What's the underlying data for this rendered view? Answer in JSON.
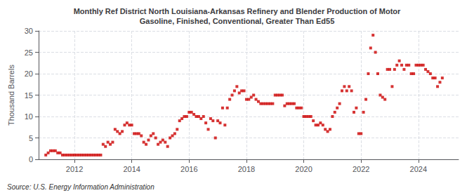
{
  "chart_data": {
    "type": "scatter",
    "title": "Monthly Ref District North Louisiana-Arkansas Refinery and Blender Production of Motor\nGasoline, Finished, Conventional, Greater Than Ed55",
    "ylabel": "Thousand Barrels",
    "annotations": [
      "Source: U.S. Energy Information Administration"
    ],
    "color": "#cc0000",
    "marker": "square",
    "grid": true,
    "xlim": [
      2010.75,
      2025.4
    ],
    "xticks": [
      2012,
      2014,
      2016,
      2018,
      2020,
      2022,
      2024
    ],
    "ylim": [
      0,
      30
    ],
    "yticks": [
      0,
      5,
      10,
      15,
      20,
      25,
      30
    ],
    "x": [
      2011.0,
      2011.083,
      2011.167,
      2011.25,
      2011.333,
      2011.417,
      2011.5,
      2011.583,
      2011.667,
      2011.75,
      2011.833,
      2011.917,
      2012.0,
      2012.083,
      2012.167,
      2012.25,
      2012.333,
      2012.417,
      2012.5,
      2012.583,
      2012.667,
      2012.75,
      2012.833,
      2012.917,
      2013.0,
      2013.083,
      2013.167,
      2013.25,
      2013.333,
      2013.417,
      2013.5,
      2013.583,
      2013.667,
      2013.75,
      2013.833,
      2013.917,
      2014.0,
      2014.083,
      2014.167,
      2014.25,
      2014.333,
      2014.417,
      2014.5,
      2014.583,
      2014.667,
      2014.75,
      2014.833,
      2014.917,
      2015.0,
      2015.083,
      2015.167,
      2015.25,
      2015.333,
      2015.417,
      2015.5,
      2015.583,
      2015.667,
      2015.75,
      2015.833,
      2015.917,
      2016.0,
      2016.083,
      2016.167,
      2016.25,
      2016.333,
      2016.417,
      2016.5,
      2016.583,
      2016.667,
      2016.75,
      2016.833,
      2016.917,
      2017.0,
      2017.083,
      2017.167,
      2017.25,
      2017.333,
      2017.417,
      2017.5,
      2017.583,
      2017.667,
      2017.75,
      2017.833,
      2017.917,
      2018.0,
      2018.083,
      2018.167,
      2018.25,
      2018.333,
      2018.417,
      2018.5,
      2018.583,
      2018.667,
      2018.75,
      2018.833,
      2018.917,
      2019.0,
      2019.083,
      2019.167,
      2019.25,
      2019.333,
      2019.417,
      2019.5,
      2019.583,
      2019.667,
      2019.75,
      2019.833,
      2019.917,
      2020.0,
      2020.083,
      2020.167,
      2020.25,
      2020.333,
      2020.417,
      2020.5,
      2020.583,
      2020.667,
      2020.75,
      2020.833,
      2020.917,
      2021.0,
      2021.083,
      2021.167,
      2021.25,
      2021.333,
      2021.417,
      2021.5,
      2021.583,
      2021.667,
      2021.75,
      2021.833,
      2021.917,
      2022.0,
      2022.083,
      2022.167,
      2022.25,
      2022.333,
      2022.417,
      2022.5,
      2022.583,
      2022.667,
      2022.75,
      2022.833,
      2022.917,
      2023.0,
      2023.083,
      2023.167,
      2023.25,
      2023.333,
      2023.417,
      2023.5,
      2023.583,
      2023.667,
      2023.75,
      2023.833,
      2023.917,
      2024.0,
      2024.083,
      2024.167,
      2024.25,
      2024.333,
      2024.417,
      2024.5,
      2024.583,
      2024.667,
      2024.75,
      2024.833
    ],
    "values": [
      1.0,
      1.5,
      2.0,
      2.0,
      2.0,
      1.5,
      1.5,
      1.0,
      1.0,
      1.0,
      1.0,
      1.0,
      1.0,
      1.0,
      1.0,
      1.0,
      1.0,
      1.0,
      1.0,
      1.0,
      1.0,
      1.0,
      1.0,
      1.0,
      3.5,
      3.0,
      4.0,
      3.5,
      4.0,
      7.0,
      6.5,
      6.0,
      6.5,
      8.0,
      8.5,
      8.0,
      8.0,
      6.0,
      6.0,
      6.0,
      5.5,
      4.0,
      3.5,
      4.5,
      5.5,
      6.0,
      5.0,
      3.5,
      4.0,
      4.5,
      4.0,
      3.0,
      5.0,
      5.5,
      6.0,
      7.0,
      9.0,
      9.5,
      10.0,
      10.0,
      11.0,
      11.0,
      10.5,
      10.0,
      10.0,
      9.5,
      10.0,
      8.5,
      7.0,
      9.5,
      9.0,
      5.0,
      9.0,
      8.5,
      12.0,
      8.0,
      12.0,
      14.0,
      15.0,
      16.0,
      17.0,
      15.5,
      16.0,
      16.0,
      14.0,
      14.0,
      14.5,
      15.0,
      14.0,
      13.5,
      13.0,
      13.0,
      13.0,
      13.0,
      13.0,
      13.0,
      15.0,
      15.0,
      15.0,
      15.0,
      12.5,
      13.0,
      13.0,
      13.0,
      13.0,
      12.0,
      12.0,
      12.0,
      10.0,
      10.0,
      10.0,
      10.0,
      9.0,
      8.0,
      8.0,
      8.5,
      8.0,
      7.0,
      6.5,
      7.0,
      10.0,
      11.0,
      12.0,
      13.0,
      16.0,
      17.0,
      16.0,
      17.0,
      16.0,
      11.0,
      12.0,
      6.0,
      6.0,
      11.0,
      14.0,
      20.0,
      26.0,
      29.0,
      25.0,
      20.0,
      15.0,
      14.5,
      14.0,
      21.0,
      21.0,
      17.0,
      21.0,
      22.0,
      23.0,
      22.0,
      21.0,
      22.0,
      22.0,
      20.0,
      20.0,
      22.0,
      22.0,
      22.0,
      22.0,
      21.0,
      20.5,
      20.0,
      19.0,
      19.0,
      17.0,
      18.0,
      19.0
    ]
  }
}
